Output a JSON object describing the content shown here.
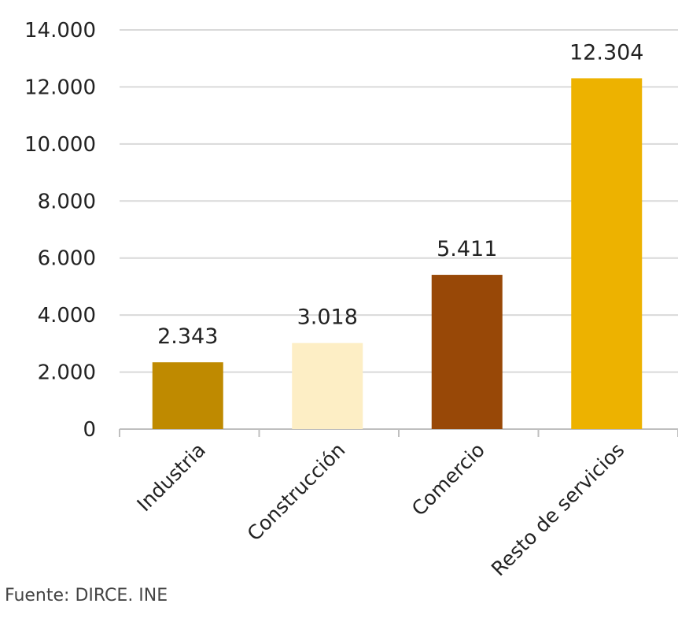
{
  "chart_data": {
    "type": "bar",
    "categories": [
      "Industria",
      "Construcción",
      "Comercio",
      "Resto de servicios"
    ],
    "values": [
      2343,
      3018,
      5411,
      12304
    ],
    "value_labels": [
      "2.343",
      "3.018",
      "5.411",
      "12.304"
    ],
    "colors": [
      "#BF8A00",
      "#FDEEC5",
      "#984807",
      "#EDB200"
    ],
    "ylim": [
      0,
      14000
    ],
    "yticks": [
      0,
      2000,
      4000,
      6000,
      8000,
      10000,
      12000,
      14000
    ],
    "ytick_labels": [
      "0",
      "2.000",
      "4.000",
      "6.000",
      "8.000",
      "10.000",
      "12.000",
      "14.000"
    ],
    "grid": true,
    "gridline_color": "#D9D9D9",
    "axis_color": "#BFBFBF"
  },
  "source": "Fuente: DIRCE. INE"
}
